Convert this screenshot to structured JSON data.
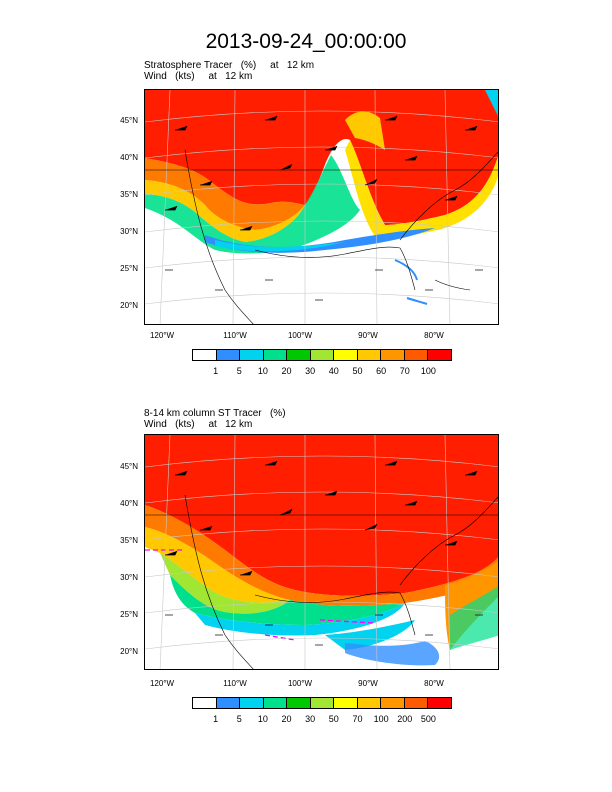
{
  "title": "2013-09-24_00:00:00",
  "panels": [
    {
      "subtitle1": "Stratosphere Tracer   (%)     at   12 km",
      "subtitle2": "Wind   (kts)     at   12 km",
      "colorbar_labels": [
        "1",
        "5",
        "10",
        "20",
        "30",
        "40",
        "50",
        "60",
        "70",
        "100"
      ]
    },
    {
      "subtitle1": "8-14 km column ST Tracer   (%)",
      "subtitle2": "Wind   (kts)     at   12 km",
      "colorbar_labels": [
        "1",
        "5",
        "10",
        "20",
        "30",
        "50",
        "70",
        "100",
        "200",
        "500"
      ]
    }
  ],
  "lat_labels": [
    "45°N",
    "40°N",
    "35°N",
    "30°N",
    "25°N",
    "20°N"
  ],
  "lon_labels": [
    "120°W",
    "110°W",
    "100°W",
    "90°W",
    "80°W"
  ],
  "colorbar_colors": [
    "#ffffff",
    "#2f8fff",
    "#00d2f0",
    "#00e08c",
    "#00c800",
    "#a0e632",
    "#ffff00",
    "#ffc800",
    "#ff9600",
    "#ff5a00",
    "#ff0000"
  ]
}
